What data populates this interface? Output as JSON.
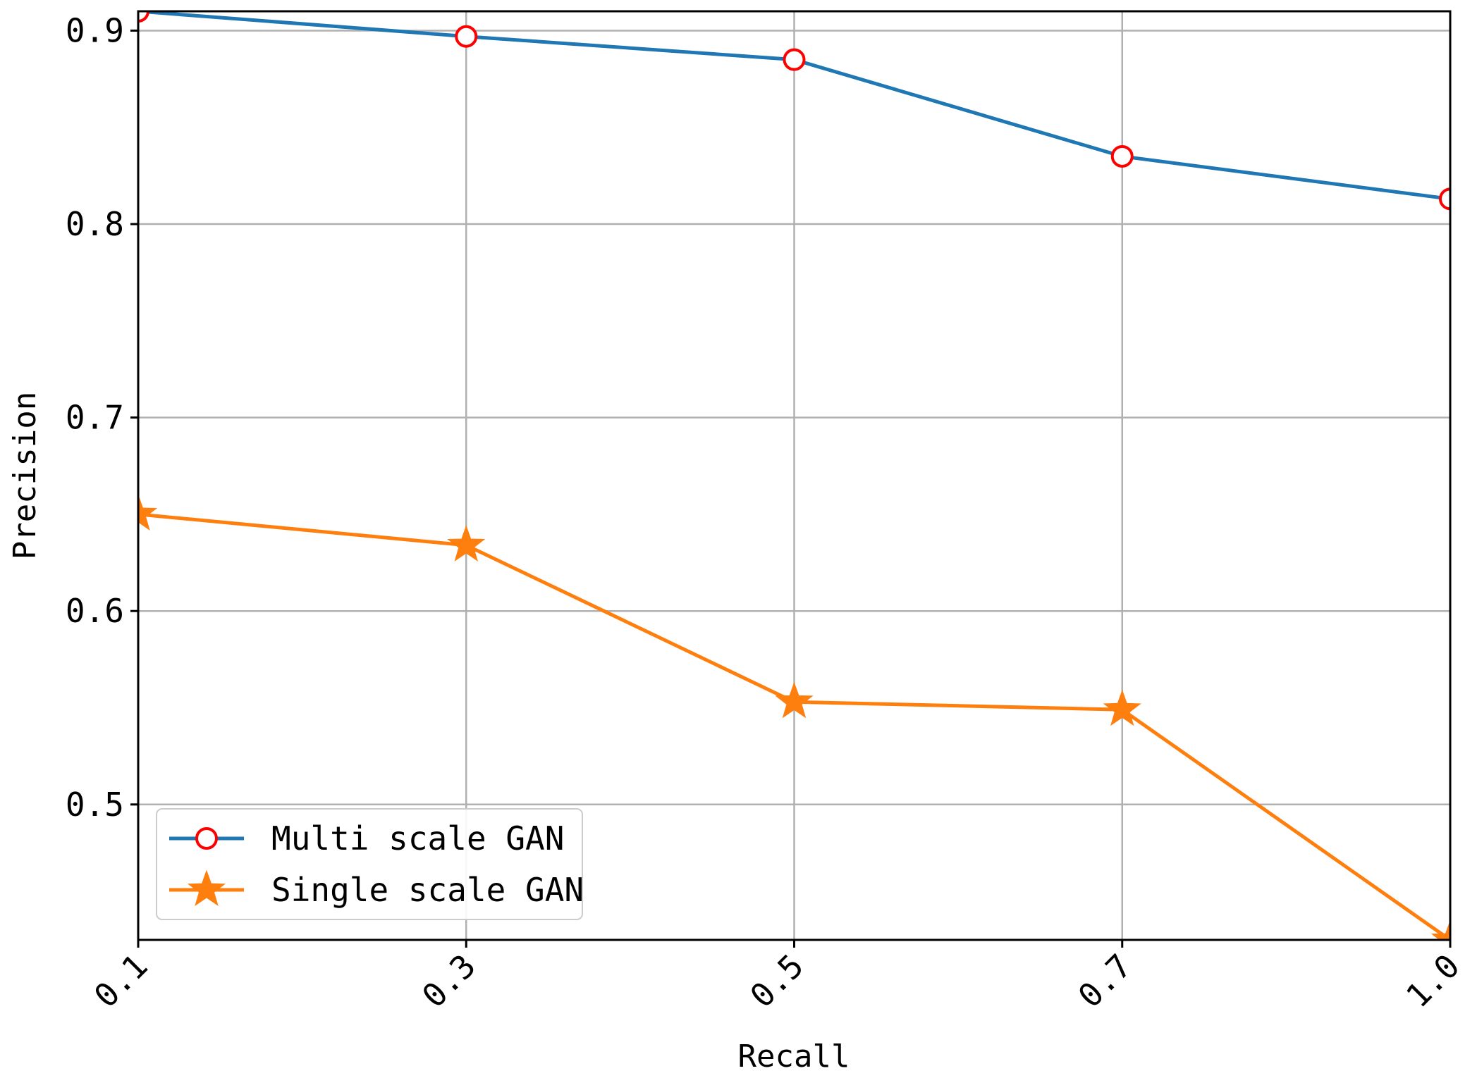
{
  "chart_data": {
    "type": "line",
    "xlabel": "Recall",
    "ylabel": "Precision",
    "categories": [
      "0.1",
      "0.3",
      "0.5",
      "0.7",
      "1.0"
    ],
    "yticks": [
      "0.5",
      "0.6",
      "0.7",
      "0.8",
      "0.9"
    ],
    "ytick_values": [
      0.5,
      0.6,
      0.7,
      0.8,
      0.9
    ],
    "ylim": [
      0.43,
      0.91
    ],
    "grid": true,
    "legend_position": "lower-left",
    "series": [
      {
        "name": "Multi scale GAN",
        "values": [
          0.91,
          0.897,
          0.885,
          0.835,
          0.813
        ],
        "color": "#1f77b4",
        "marker": "circle-open",
        "marker_color": "#ff0000"
      },
      {
        "name": "Single scale GAN",
        "values": [
          0.65,
          0.634,
          0.553,
          0.549,
          0.43
        ],
        "color": "#ff7f0e",
        "marker": "star",
        "marker_color": "#ff7f0e"
      }
    ]
  }
}
